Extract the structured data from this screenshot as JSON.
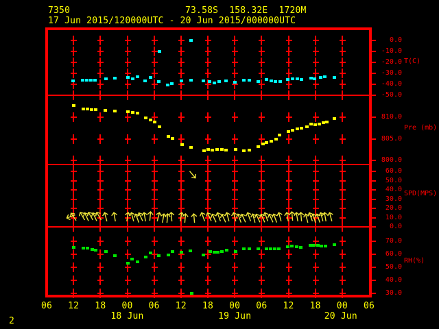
{
  "header": {
    "station_id": "7350",
    "location": "73.58S  158.32E  1720M",
    "period": "17 Jun 2015/120000UTC - 20 Jun 2015/000000UTC"
  },
  "footer": {
    "page_number": "2"
  },
  "x_axis": {
    "hour_labels": [
      "06",
      "12",
      "18",
      "00",
      "06",
      "12",
      "18",
      "00",
      "06",
      "12",
      "18",
      "00",
      "06"
    ],
    "date_labels": [
      "18 Jun",
      "19 Jun",
      "20 Jun"
    ]
  },
  "panels": [
    {
      "name": "temperature",
      "unit_label": "T(C)",
      "tick_labels": [
        "0.0",
        "-10.0",
        "-20.0",
        "-30.0",
        "-40.0",
        "-50.0"
      ]
    },
    {
      "name": "pressure",
      "unit_label": "Pre (mb)",
      "tick_labels": [
        "810.0",
        "805.0",
        "800.0"
      ]
    },
    {
      "name": "wind_speed",
      "unit_label": "SPD(MPS)",
      "tick_labels": [
        "60.0",
        "50.0",
        "40.0",
        "30.0",
        "20.0",
        "10.0",
        "0.0"
      ]
    },
    {
      "name": "humidity",
      "unit_label": "RH(%)",
      "tick_labels": [
        "70.0",
        "60.0",
        "50.0",
        "40.0",
        "30.0"
      ]
    }
  ],
  "colors": {
    "background": "#000000",
    "grid": "#ff0000",
    "title_text": "#ffff00",
    "temperature_series": "#00ffff",
    "pressure_series": "#ffff00",
    "wind_series": "#ede43a",
    "humidity_series": "#00e400"
  },
  "chart_data": [
    {
      "type": "scatter",
      "title": "Station 7350 meteogram, 17 Jun 2015 12UTC - 20 Jun 2015 00UTC",
      "name": "temperature",
      "ylabel": "T(C)",
      "ylim": [
        -50,
        0
      ],
      "x_unit": "hours since 17 Jun 2015 06:00 UTC",
      "xlim": [
        0,
        72
      ],
      "points": [
        [
          5.8,
          -36.9
        ],
        [
          8.0,
          -36.3
        ],
        [
          8.9,
          -36.3
        ],
        [
          9.8,
          -36.3
        ],
        [
          10.7,
          -36.3
        ],
        [
          13.2,
          -35.0
        ],
        [
          15.2,
          -34.4
        ],
        [
          18.1,
          -33.8
        ],
        [
          19.1,
          -35.0
        ],
        [
          20.2,
          -33.1
        ],
        [
          21.9,
          -36.9
        ],
        [
          23.1,
          -33.8
        ],
        [
          25.0,
          -37.5
        ],
        [
          25.1,
          -10.0
        ],
        [
          27.0,
          -40.6
        ],
        [
          27.9,
          -39.4
        ],
        [
          30.0,
          -36.9
        ],
        [
          32.2,
          -36.3
        ],
        [
          32.2,
          0.3
        ],
        [
          34.9,
          -36.9
        ],
        [
          36.3,
          -37.5
        ],
        [
          37.4,
          -38.8
        ],
        [
          38.5,
          -37.5
        ],
        [
          40.0,
          -36.9
        ],
        [
          42.0,
          -38.1
        ],
        [
          44.0,
          -36.3
        ],
        [
          45.2,
          -36.3
        ],
        [
          47.2,
          -37.5
        ],
        [
          49.0,
          -35.6
        ],
        [
          50.1,
          -36.9
        ],
        [
          51.0,
          -37.5
        ],
        [
          52.1,
          -37.5
        ],
        [
          53.8,
          -35.6
        ],
        [
          54.8,
          -35.0
        ],
        [
          55.9,
          -35.0
        ],
        [
          56.8,
          -35.6
        ],
        [
          59.0,
          -34.4
        ],
        [
          59.7,
          -35.0
        ],
        [
          61.1,
          -33.8
        ],
        [
          62.0,
          -33.1
        ],
        [
          64.2,
          -33.8
        ]
      ]
    },
    {
      "type": "scatter",
      "name": "pressure",
      "ylabel": "Pre (mb)",
      "ylim": [
        799,
        815
      ],
      "x_unit": "hours since 17 Jun 2015 06:00 UTC",
      "xlim": [
        0,
        72
      ],
      "points": [
        [
          6.0,
          812.7
        ],
        [
          8.1,
          811.9
        ],
        [
          9.0,
          811.9
        ],
        [
          10.0,
          811.7
        ],
        [
          10.9,
          811.7
        ],
        [
          13.0,
          811.6
        ],
        [
          15.2,
          811.4
        ],
        [
          18.1,
          811.3
        ],
        [
          19.1,
          811.1
        ],
        [
          20.2,
          810.9
        ],
        [
          22.1,
          809.8
        ],
        [
          23.1,
          809.3
        ],
        [
          24.0,
          808.9
        ],
        [
          25.1,
          807.8
        ],
        [
          27.1,
          805.6
        ],
        [
          28.0,
          805.1
        ],
        [
          30.2,
          803.7
        ],
        [
          32.2,
          803.0
        ],
        [
          35.1,
          802.3
        ],
        [
          36.0,
          802.6
        ],
        [
          36.9,
          802.4
        ],
        [
          38.0,
          802.5
        ],
        [
          39.1,
          802.5
        ],
        [
          40.0,
          802.4
        ],
        [
          42.1,
          802.5
        ],
        [
          44.0,
          802.2
        ],
        [
          45.2,
          802.4
        ],
        [
          47.2,
          803.2
        ],
        [
          48.3,
          803.8
        ],
        [
          49.0,
          804.1
        ],
        [
          50.1,
          804.4
        ],
        [
          51.2,
          804.9
        ],
        [
          51.9,
          805.9
        ],
        [
          53.9,
          806.7
        ],
        [
          54.8,
          807.0
        ],
        [
          55.9,
          807.3
        ],
        [
          56.8,
          807.5
        ],
        [
          58.1,
          807.8
        ],
        [
          59.0,
          808.4
        ],
        [
          59.9,
          808.3
        ],
        [
          60.8,
          808.4
        ],
        [
          61.7,
          808.7
        ],
        [
          62.5,
          808.9
        ],
        [
          64.2,
          809.7
        ]
      ]
    },
    {
      "type": "scatter",
      "name": "wind_speed",
      "ylabel": "SPD(MPS)",
      "ylim": [
        0,
        67
      ],
      "x_unit": "hours since 17 Jun 2015 06:00 UTC",
      "xlim": [
        0,
        72
      ],
      "note": "arrows: [hour, speed_mps, direction_deg_from_up]",
      "points": [
        [
          5.4,
          11,
          -110
        ],
        [
          6.0,
          11,
          -35
        ],
        [
          8.0,
          12,
          -30
        ],
        [
          8.9,
          11,
          -25
        ],
        [
          9.8,
          12,
          -30
        ],
        [
          10.7,
          11,
          -25
        ],
        [
          11.6,
          12,
          -30
        ],
        [
          13.2,
          11,
          -15
        ],
        [
          15.2,
          11,
          -10
        ],
        [
          18.1,
          11,
          10
        ],
        [
          19.1,
          11,
          -15
        ],
        [
          20.2,
          10,
          -20
        ],
        [
          21.0,
          11,
          -25
        ],
        [
          21.9,
          11,
          -10
        ],
        [
          23.1,
          12,
          5
        ],
        [
          25.0,
          11,
          15
        ],
        [
          26.0,
          10,
          10
        ],
        [
          27.0,
          10,
          5
        ],
        [
          27.9,
          11,
          -5
        ],
        [
          30.0,
          11,
          10
        ],
        [
          31.0,
          10,
          5
        ],
        [
          32.6,
          56,
          140
        ],
        [
          33.0,
          10,
          -5
        ],
        [
          34.9,
          11,
          -20
        ],
        [
          36.3,
          11,
          -25
        ],
        [
          37.4,
          10,
          -25
        ],
        [
          38.5,
          11,
          -20
        ],
        [
          39.5,
          10,
          -25
        ],
        [
          40.5,
          11,
          -15
        ],
        [
          42.0,
          11,
          -15
        ],
        [
          43.0,
          10,
          -20
        ],
        [
          44.0,
          10,
          -25
        ],
        [
          45.2,
          11,
          -20
        ],
        [
          46.2,
          10,
          -15
        ],
        [
          47.2,
          10,
          -25
        ],
        [
          48.3,
          10,
          -25
        ],
        [
          49.0,
          11,
          -20
        ],
        [
          50.1,
          10,
          -25
        ],
        [
          51.0,
          10,
          -20
        ],
        [
          52.1,
          11,
          -15
        ],
        [
          53.8,
          11,
          -10
        ],
        [
          54.8,
          12,
          -5
        ],
        [
          55.9,
          11,
          -10
        ],
        [
          56.8,
          11,
          -5
        ],
        [
          58.1,
          10,
          -15
        ],
        [
          59.0,
          11,
          -20
        ],
        [
          59.7,
          10,
          -15
        ],
        [
          60.6,
          10,
          -20
        ],
        [
          61.4,
          11,
          -15
        ],
        [
          62.2,
          11,
          -10
        ],
        [
          63.4,
          11,
          -15
        ]
      ]
    },
    {
      "type": "scatter",
      "name": "humidity",
      "ylabel": "RH(%)",
      "ylim": [
        30,
        70
      ],
      "x_unit": "hours since 17 Jun 2015 06:00 UTC",
      "xlim": [
        0,
        72
      ],
      "points": [
        [
          6.0,
          65.3
        ],
        [
          8.1,
          64.7
        ],
        [
          9.0,
          64.7
        ],
        [
          10.1,
          63.7
        ],
        [
          10.9,
          63.2
        ],
        [
          13.2,
          62.1
        ],
        [
          15.2,
          58.9
        ],
        [
          18.1,
          53.2
        ],
        [
          19.0,
          56.3
        ],
        [
          20.2,
          54.2
        ],
        [
          22.1,
          57.9
        ],
        [
          23.1,
          61.1
        ],
        [
          25.0,
          58.9
        ],
        [
          27.1,
          59.5
        ],
        [
          28.0,
          62.1
        ],
        [
          30.0,
          61.6
        ],
        [
          32.0,
          62.6
        ],
        [
          32.3,
          30.0
        ],
        [
          34.9,
          59.5
        ],
        [
          36.5,
          62.1
        ],
        [
          37.4,
          61.6
        ],
        [
          38.1,
          61.6
        ],
        [
          39.1,
          62.1
        ],
        [
          40.1,
          63.2
        ],
        [
          42.1,
          62.1
        ],
        [
          44.0,
          64.2
        ],
        [
          45.2,
          64.2
        ],
        [
          47.2,
          64.2
        ],
        [
          49.0,
          64.2
        ],
        [
          49.9,
          64.2
        ],
        [
          50.9,
          64.2
        ],
        [
          51.8,
          64.2
        ],
        [
          53.8,
          65.8
        ],
        [
          54.7,
          66.3
        ],
        [
          55.8,
          65.8
        ],
        [
          56.7,
          65.3
        ],
        [
          58.8,
          66.8
        ],
        [
          59.6,
          66.8
        ],
        [
          60.5,
          66.8
        ],
        [
          61.3,
          66.3
        ],
        [
          62.2,
          66.3
        ],
        [
          64.2,
          67.4
        ]
      ]
    }
  ]
}
